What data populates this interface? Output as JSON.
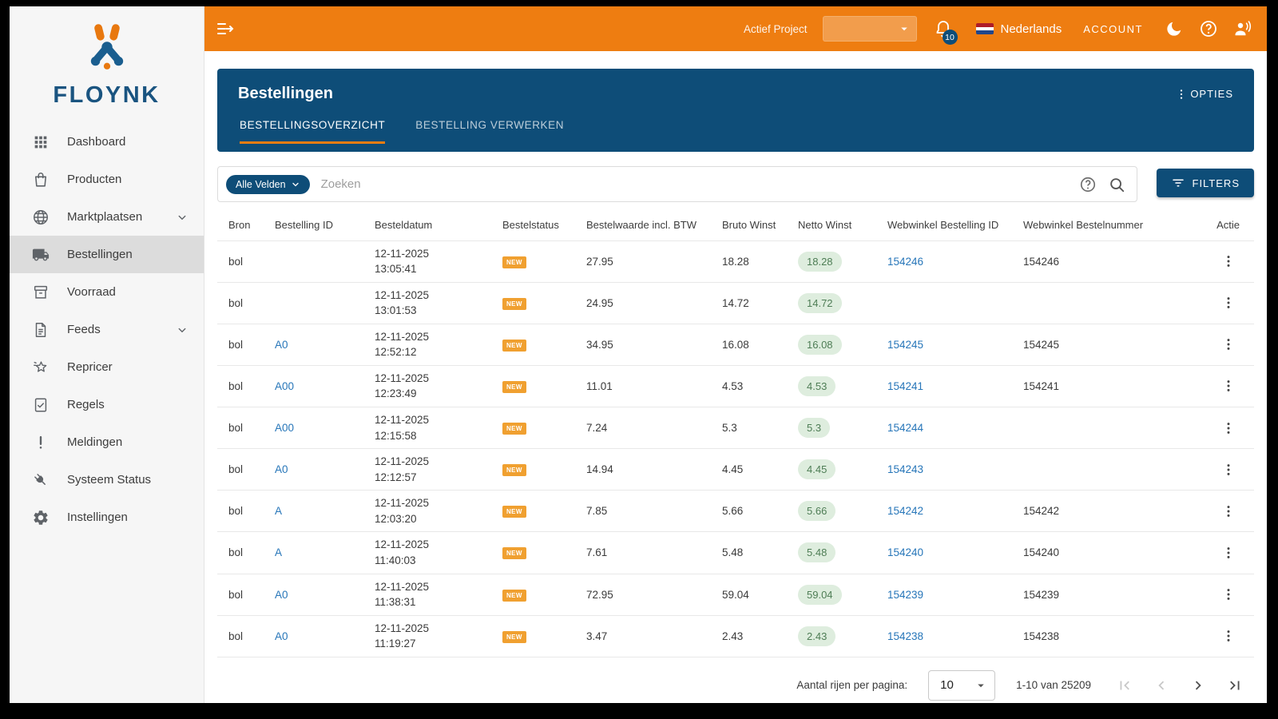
{
  "topbar": {
    "collapse_icon": "menu-open-icon",
    "actief_project_label": "Actief Project",
    "project_select_value": "",
    "notifications_count": "10",
    "language_label": "Nederlands",
    "account_label": "ACCOUNT",
    "right_icons": [
      "bell-icon",
      "theme-moon-icon",
      "help-icon",
      "voice-icon"
    ]
  },
  "sidebar": {
    "brand": "FLOYNK",
    "items": [
      {
        "label": "Dashboard",
        "icon": "grid-icon",
        "active": false,
        "expandable": false
      },
      {
        "label": "Producten",
        "icon": "bag-icon",
        "active": false,
        "expandable": false
      },
      {
        "label": "Marktplaatsen",
        "icon": "globe-icon",
        "active": false,
        "expandable": true
      },
      {
        "label": "Bestellingen",
        "icon": "truck-icon",
        "active": true,
        "expandable": false
      },
      {
        "label": "Voorraad",
        "icon": "inventory-icon",
        "active": false,
        "expandable": false
      },
      {
        "label": "Feeds",
        "icon": "document-icon",
        "active": false,
        "expandable": true
      },
      {
        "label": "Repricer",
        "icon": "star-icon",
        "active": false,
        "expandable": false
      },
      {
        "label": "Regels",
        "icon": "rules-icon",
        "active": false,
        "expandable": false
      },
      {
        "label": "Meldingen",
        "icon": "exclamation-icon",
        "active": false,
        "expandable": false
      },
      {
        "label": "Systeem Status",
        "icon": "plug-icon",
        "active": false,
        "expandable": false
      },
      {
        "label": "Instellingen",
        "icon": "gear-icon",
        "active": false,
        "expandable": false
      }
    ]
  },
  "header": {
    "title": "Bestellingen",
    "options_label": "OPTIES",
    "tabs": [
      {
        "label": "BESTELLINGSOVERZICHT",
        "active": true
      },
      {
        "label": "BESTELLING VERWERKEN",
        "active": false
      }
    ]
  },
  "search": {
    "field_chip": "Alle Velden",
    "placeholder": "Zoeken",
    "icons": [
      "help-icon",
      "search-icon"
    ]
  },
  "filters_button_label": "FILTERS",
  "table": {
    "columns": [
      "Bron",
      "Bestelling ID",
      "Besteldatum",
      "Bestelstatus",
      "Bestelwaarde incl. BTW",
      "Bruto Winst",
      "Netto Winst",
      "Webwinkel Bestelling ID",
      "Webwinkel Bestelnummer",
      "Actie"
    ],
    "rows": [
      {
        "bron": "bol",
        "bestelling_id": "",
        "datum": "12-11-2025",
        "tijd": "13:05:41",
        "status": "NEW",
        "waarde": "27.95",
        "bruto": "18.28",
        "netto": "18.28",
        "webwinkel_id": "154246",
        "bestelnummer": "154246"
      },
      {
        "bron": "bol",
        "bestelling_id": "",
        "datum": "12-11-2025",
        "tijd": "13:01:53",
        "status": "NEW",
        "waarde": "24.95",
        "bruto": "14.72",
        "netto": "14.72",
        "webwinkel_id": "",
        "bestelnummer": ""
      },
      {
        "bron": "bol",
        "bestelling_id": "A0",
        "datum": "12-11-2025",
        "tijd": "12:52:12",
        "status": "NEW",
        "waarde": "34.95",
        "bruto": "16.08",
        "netto": "16.08",
        "webwinkel_id": "154245",
        "bestelnummer": "154245"
      },
      {
        "bron": "bol",
        "bestelling_id": "A00",
        "datum": "12-11-2025",
        "tijd": "12:23:49",
        "status": "NEW",
        "waarde": "11.01",
        "bruto": "4.53",
        "netto": "4.53",
        "webwinkel_id": "154241",
        "bestelnummer": "154241"
      },
      {
        "bron": "bol",
        "bestelling_id": "A00",
        "datum": "12-11-2025",
        "tijd": "12:15:58",
        "status": "NEW",
        "waarde": "7.24",
        "bruto": "5.3",
        "netto": "5.3",
        "webwinkel_id": "154244",
        "bestelnummer": ""
      },
      {
        "bron": "bol",
        "bestelling_id": "A0",
        "datum": "12-11-2025",
        "tijd": "12:12:57",
        "status": "NEW",
        "waarde": "14.94",
        "bruto": "4.45",
        "netto": "4.45",
        "webwinkel_id": "154243",
        "bestelnummer": ""
      },
      {
        "bron": "bol",
        "bestelling_id": "A",
        "datum": "12-11-2025",
        "tijd": "12:03:20",
        "status": "NEW",
        "waarde": "7.85",
        "bruto": "5.66",
        "netto": "5.66",
        "webwinkel_id": "154242",
        "bestelnummer": "154242"
      },
      {
        "bron": "bol",
        "bestelling_id": "A",
        "datum": "12-11-2025",
        "tijd": "11:40:03",
        "status": "NEW",
        "waarde": "7.61",
        "bruto": "5.48",
        "netto": "5.48",
        "webwinkel_id": "154240",
        "bestelnummer": "154240"
      },
      {
        "bron": "bol",
        "bestelling_id": "A0",
        "datum": "12-11-2025",
        "tijd": "11:38:31",
        "status": "NEW",
        "waarde": "72.95",
        "bruto": "59.04",
        "netto": "59.04",
        "webwinkel_id": "154239",
        "bestelnummer": "154239"
      },
      {
        "bron": "bol",
        "bestelling_id": "A0",
        "datum": "12-11-2025",
        "tijd": "11:19:27",
        "status": "NEW",
        "waarde": "3.47",
        "bruto": "2.43",
        "netto": "2.43",
        "webwinkel_id": "154238",
        "bestelnummer": "154238"
      }
    ]
  },
  "pagination": {
    "rows_per_page_label": "Aantal rijen per pagina:",
    "rows_per_page_value": "10",
    "range_label": "1-10 van 25209",
    "nav_icons": [
      "first-page-icon",
      "prev-page-icon",
      "next-page-icon",
      "last-page-icon"
    ]
  },
  "colors": {
    "brand_orange": "#EE7D11",
    "brand_dark_blue": "#0E4D78",
    "link_blue": "#2776B9",
    "status_badge_orange": "#F0A030",
    "netto_pill_bg": "#DEEDDE",
    "netto_pill_text": "#4E7D55",
    "sidebar_bg": "#F6F6F6"
  }
}
